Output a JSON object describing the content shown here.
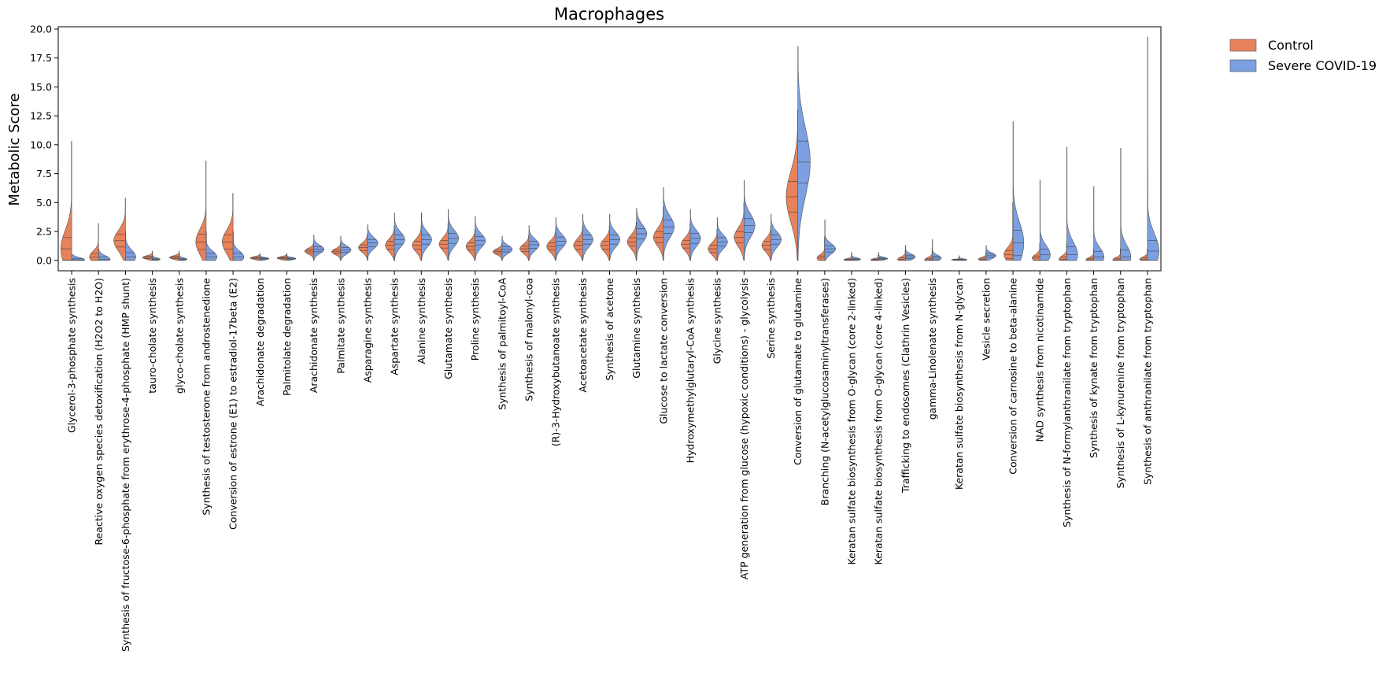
{
  "chart_data": {
    "type": "split-violin",
    "title": "Macrophages",
    "xlabel": "",
    "ylabel": "Metabolic Score",
    "ylim": [
      -0.9,
      20.2
    ],
    "yticks": [
      0.0,
      2.5,
      5.0,
      7.5,
      10.0,
      12.5,
      15.0,
      17.5,
      20.0
    ],
    "ytick_labels": [
      "0.0",
      "2.5",
      "5.0",
      "7.5",
      "10.0",
      "12.5",
      "15.0",
      "17.5",
      "20.0"
    ],
    "legend_position": "outside-top-right",
    "series": [
      {
        "name": "Control",
        "color": "#e8825a"
      },
      {
        "name": "Severe COVID-19",
        "color": "#7b9fe0"
      }
    ],
    "categories": [
      "Glycerol-3-phosphate synthesis",
      "Reactive oxygen species detoxification (H2O2 to H2O)",
      "Synthesis of fructose-6-phosphate from erythrose-4-phosphate (HMP shunt)",
      "tauro-cholate synthesis",
      "glyco-cholate synthesis",
      "Synthesis of testosterone from androstenedione",
      "Conversion of estrone (E1) to estradiol-17beta (E2)",
      "Arachidonate degradation",
      "Palmitolate degradation",
      "Arachidonate synthesis",
      "Palmitate synthesis",
      "Asparagine synthesis",
      "Aspartate synthesis",
      "Alanine synthesis",
      "Glutamate synthesis",
      "Proline synthesis",
      "Synthesis of palmitoyl-CoA",
      "Synthesis of malonyl-coa",
      "(R)-3-Hydroxybutanoate synthesis",
      "Acetoacetate synthesis",
      "Synthesis of acetone",
      "Glutamine synthesis",
      "Glucose to lactate conversion",
      "Hydroxymethylglutaryl-CoA synthesis",
      "Glycine synthesis",
      "ATP generation from glucose (hypoxic conditions) - glycolysis",
      "Serine synthesis",
      "Conversion of glutamate to glutamine",
      "Branching (N-acetylglucosaminyltransferases)",
      "Keratan sulfate biosynthesis from O-glycan (core 2-linked)",
      "Keratan sulfate biosynthesis from O-glycan (core 4-linked)",
      "Trafficking to endosomes (Clathrin Vesicles)",
      "gamma-Linolenate synthesis",
      "Keratan sulfate biosynthesis from N-glycan",
      "Vesicle secretion",
      "Conversion of carnosine to beta-alanine",
      "NAD synthesis from nicotinamide",
      "Synthesis of N-formylanthranilate from tryptophan",
      "Synthesis of kynate from tryptophan",
      "Synthesis of L-kynurenine from tryptophan",
      "Synthesis of anthranilate from tryptophan"
    ],
    "violins": [
      {
        "control": {
          "min": 0.0,
          "max": 10.3,
          "mode": 1.0,
          "width": 0.42,
          "spread": 1.6,
          "median": 1.0
        },
        "covid": {
          "min": 0.0,
          "max": 0.5,
          "mode": 0.05,
          "width": 0.5,
          "spread": 0.2,
          "median": 0.05
        }
      },
      {
        "control": {
          "min": 0.0,
          "max": 3.2,
          "mode": 0.3,
          "width": 0.35,
          "spread": 0.5,
          "median": 0.3
        },
        "covid": {
          "min": 0.0,
          "max": 1.0,
          "mode": 0.1,
          "width": 0.45,
          "spread": 0.3,
          "median": 0.1
        }
      },
      {
        "control": {
          "min": 0.0,
          "max": 5.4,
          "mode": 1.7,
          "width": 0.45,
          "spread": 0.9,
          "median": 1.7
        },
        "covid": {
          "min": 0.0,
          "max": 2.5,
          "mode": 0.3,
          "width": 0.4,
          "spread": 0.6,
          "median": 0.3
        }
      },
      {
        "control": {
          "min": 0.0,
          "max": 0.8,
          "mode": 0.25,
          "width": 0.38,
          "spread": 0.15,
          "median": 0.25
        },
        "covid": {
          "min": 0.0,
          "max": 0.6,
          "mode": 0.1,
          "width": 0.3,
          "spread": 0.12,
          "median": 0.1
        }
      },
      {
        "control": {
          "min": 0.0,
          "max": 0.8,
          "mode": 0.25,
          "width": 0.38,
          "spread": 0.15,
          "median": 0.25
        },
        "covid": {
          "min": 0.0,
          "max": 0.6,
          "mode": 0.1,
          "width": 0.3,
          "spread": 0.12,
          "median": 0.1
        }
      },
      {
        "control": {
          "min": 0.0,
          "max": 8.6,
          "mode": 1.6,
          "width": 0.4,
          "spread": 1.1,
          "median": 1.6
        },
        "covid": {
          "min": 0.0,
          "max": 2.5,
          "mode": 0.3,
          "width": 0.42,
          "spread": 0.5,
          "median": 0.3
        }
      },
      {
        "control": {
          "min": 0.0,
          "max": 5.8,
          "mode": 1.6,
          "width": 0.42,
          "spread": 1.0,
          "median": 1.6
        },
        "covid": {
          "min": 0.0,
          "max": 2.5,
          "mode": 0.3,
          "width": 0.42,
          "spread": 0.5,
          "median": 0.3
        }
      },
      {
        "control": {
          "min": 0.0,
          "max": 0.6,
          "mode": 0.2,
          "width": 0.38,
          "spread": 0.12,
          "median": 0.2
        },
        "covid": {
          "min": 0.0,
          "max": 0.5,
          "mode": 0.15,
          "width": 0.35,
          "spread": 0.1,
          "median": 0.15
        }
      },
      {
        "control": {
          "min": 0.0,
          "max": 0.6,
          "mode": 0.2,
          "width": 0.38,
          "spread": 0.12,
          "median": 0.2
        },
        "covid": {
          "min": 0.0,
          "max": 0.5,
          "mode": 0.15,
          "width": 0.35,
          "spread": 0.1,
          "median": 0.15
        }
      },
      {
        "control": {
          "min": 0.0,
          "max": 1.6,
          "mode": 0.8,
          "width": 0.35,
          "spread": 0.25,
          "median": 0.8
        },
        "covid": {
          "min": 0.0,
          "max": 2.2,
          "mode": 0.95,
          "width": 0.4,
          "spread": 0.35,
          "median": 0.95
        }
      },
      {
        "control": {
          "min": 0.0,
          "max": 1.5,
          "mode": 0.75,
          "width": 0.35,
          "spread": 0.25,
          "median": 0.75
        },
        "covid": {
          "min": 0.0,
          "max": 2.1,
          "mode": 0.9,
          "width": 0.4,
          "spread": 0.35,
          "median": 0.9
        }
      },
      {
        "control": {
          "min": 0.0,
          "max": 2.3,
          "mode": 1.1,
          "width": 0.35,
          "spread": 0.4,
          "median": 1.1
        },
        "covid": {
          "min": 0.0,
          "max": 3.1,
          "mode": 1.5,
          "width": 0.4,
          "spread": 0.5,
          "median": 1.5
        }
      },
      {
        "control": {
          "min": 0.0,
          "max": 3.0,
          "mode": 1.3,
          "width": 0.35,
          "spread": 0.55,
          "median": 1.3
        },
        "covid": {
          "min": 0.0,
          "max": 4.1,
          "mode": 1.8,
          "width": 0.4,
          "spread": 0.65,
          "median": 1.8
        }
      },
      {
        "control": {
          "min": 0.0,
          "max": 3.0,
          "mode": 1.3,
          "width": 0.35,
          "spread": 0.55,
          "median": 1.3
        },
        "covid": {
          "min": 0.0,
          "max": 4.1,
          "mode": 1.8,
          "width": 0.4,
          "spread": 0.65,
          "median": 1.8
        }
      },
      {
        "control": {
          "min": 0.0,
          "max": 3.2,
          "mode": 1.4,
          "width": 0.35,
          "spread": 0.55,
          "median": 1.4
        },
        "covid": {
          "min": 0.0,
          "max": 4.4,
          "mode": 1.9,
          "width": 0.4,
          "spread": 0.7,
          "median": 1.9
        }
      },
      {
        "control": {
          "min": 0.0,
          "max": 2.7,
          "mode": 1.2,
          "width": 0.35,
          "spread": 0.5,
          "median": 1.2
        },
        "covid": {
          "min": 0.0,
          "max": 3.8,
          "mode": 1.7,
          "width": 0.4,
          "spread": 0.6,
          "median": 1.7
        }
      },
      {
        "control": {
          "min": 0.0,
          "max": 1.5,
          "mode": 0.75,
          "width": 0.35,
          "spread": 0.25,
          "median": 0.75
        },
        "covid": {
          "min": 0.0,
          "max": 2.1,
          "mode": 0.95,
          "width": 0.4,
          "spread": 0.35,
          "median": 0.95
        }
      },
      {
        "control": {
          "min": 0.0,
          "max": 2.2,
          "mode": 1.0,
          "width": 0.35,
          "spread": 0.4,
          "median": 1.0
        },
        "covid": {
          "min": 0.0,
          "max": 3.0,
          "mode": 1.35,
          "width": 0.4,
          "spread": 0.5,
          "median": 1.35
        }
      },
      {
        "control": {
          "min": 0.0,
          "max": 2.8,
          "mode": 1.2,
          "width": 0.35,
          "spread": 0.5,
          "median": 1.2
        },
        "covid": {
          "min": 0.0,
          "max": 3.7,
          "mode": 1.65,
          "width": 0.4,
          "spread": 0.6,
          "median": 1.65
        }
      },
      {
        "control": {
          "min": 0.0,
          "max": 3.0,
          "mode": 1.3,
          "width": 0.35,
          "spread": 0.55,
          "median": 1.3
        },
        "covid": {
          "min": 0.0,
          "max": 4.0,
          "mode": 1.8,
          "width": 0.4,
          "spread": 0.65,
          "median": 1.8
        }
      },
      {
        "control": {
          "min": 0.0,
          "max": 3.0,
          "mode": 1.3,
          "width": 0.35,
          "spread": 0.55,
          "median": 1.3
        },
        "covid": {
          "min": 0.0,
          "max": 4.0,
          "mode": 1.8,
          "width": 0.4,
          "spread": 0.65,
          "median": 1.8
        }
      },
      {
        "control": {
          "min": 0.0,
          "max": 3.3,
          "mode": 1.6,
          "width": 0.35,
          "spread": 0.6,
          "median": 1.6
        },
        "covid": {
          "min": 0.0,
          "max": 4.5,
          "mode": 2.3,
          "width": 0.4,
          "spread": 0.75,
          "median": 2.3
        }
      },
      {
        "control": {
          "min": 0.0,
          "max": 4.6,
          "mode": 2.0,
          "width": 0.38,
          "spread": 0.75,
          "median": 2.0
        },
        "covid": {
          "min": 0.0,
          "max": 6.3,
          "mode": 2.9,
          "width": 0.42,
          "spread": 0.95,
          "median": 2.9
        }
      },
      {
        "control": {
          "min": 0.0,
          "max": 3.2,
          "mode": 1.4,
          "width": 0.35,
          "spread": 0.55,
          "median": 1.4
        },
        "covid": {
          "min": 0.0,
          "max": 4.4,
          "mode": 1.9,
          "width": 0.4,
          "spread": 0.7,
          "median": 1.9
        }
      },
      {
        "control": {
          "min": 0.0,
          "max": 2.7,
          "mode": 1.0,
          "width": 0.35,
          "spread": 0.5,
          "median": 1.0
        },
        "covid": {
          "min": 0.0,
          "max": 3.7,
          "mode": 1.6,
          "width": 0.4,
          "spread": 0.6,
          "median": 1.6
        }
      },
      {
        "control": {
          "min": 0.0,
          "max": 5.0,
          "mode": 2.0,
          "width": 0.38,
          "spread": 0.8,
          "median": 2.0
        },
        "covid": {
          "min": 0.0,
          "max": 6.9,
          "mode": 3.0,
          "width": 0.42,
          "spread": 1.0,
          "median": 3.0
        }
      },
      {
        "control": {
          "min": 0.0,
          "max": 3.0,
          "mode": 1.3,
          "width": 0.35,
          "spread": 0.55,
          "median": 1.3
        },
        "covid": {
          "min": 0.0,
          "max": 4.0,
          "mode": 1.8,
          "width": 0.4,
          "spread": 0.65,
          "median": 1.8
        }
      },
      {
        "control": {
          "min": 0.0,
          "max": 13.0,
          "mode": 5.5,
          "width": 0.45,
          "spread": 2.2,
          "median": 5.5
        },
        "covid": {
          "min": 0.0,
          "max": 18.5,
          "mode": 8.5,
          "width": 0.48,
          "spread": 3.0,
          "median": 8.5
        }
      },
      {
        "control": {
          "min": 0.0,
          "max": 2.0,
          "mode": 0.2,
          "width": 0.3,
          "spread": 0.3,
          "median": 0.2
        },
        "covid": {
          "min": 0.0,
          "max": 3.5,
          "mode": 1.0,
          "width": 0.42,
          "spread": 0.45,
          "median": 1.0
        }
      },
      {
        "control": {
          "min": 0.0,
          "max": 0.5,
          "mode": 0.05,
          "width": 0.3,
          "spread": 0.1,
          "median": 0.05
        },
        "covid": {
          "min": 0.0,
          "max": 0.7,
          "mode": 0.1,
          "width": 0.35,
          "spread": 0.12,
          "median": 0.1
        }
      },
      {
        "control": {
          "min": 0.0,
          "max": 0.5,
          "mode": 0.05,
          "width": 0.3,
          "spread": 0.1,
          "median": 0.05
        },
        "covid": {
          "min": 0.0,
          "max": 0.7,
          "mode": 0.15,
          "width": 0.35,
          "spread": 0.12,
          "median": 0.15
        }
      },
      {
        "control": {
          "min": 0.0,
          "max": 0.9,
          "mode": 0.1,
          "width": 0.3,
          "spread": 0.2,
          "median": 0.1
        },
        "covid": {
          "min": 0.0,
          "max": 1.3,
          "mode": 0.3,
          "width": 0.38,
          "spread": 0.25,
          "median": 0.3
        }
      },
      {
        "control": {
          "min": 0.0,
          "max": 1.0,
          "mode": 0.05,
          "width": 0.3,
          "spread": 0.2,
          "median": 0.05
        },
        "covid": {
          "min": 0.0,
          "max": 1.8,
          "mode": 0.2,
          "width": 0.35,
          "spread": 0.25,
          "median": 0.2
        }
      },
      {
        "control": {
          "min": 0.0,
          "max": 0.3,
          "mode": 0.05,
          "width": 0.3,
          "spread": 0.05,
          "median": 0.05
        },
        "covid": {
          "min": 0.0,
          "max": 0.4,
          "mode": 0.05,
          "width": 0.3,
          "spread": 0.08,
          "median": 0.05
        }
      },
      {
        "control": {
          "min": 0.0,
          "max": 0.8,
          "mode": 0.1,
          "width": 0.3,
          "spread": 0.15,
          "median": 0.1
        },
        "covid": {
          "min": 0.0,
          "max": 1.3,
          "mode": 0.4,
          "width": 0.38,
          "spread": 0.25,
          "median": 0.4
        }
      },
      {
        "control": {
          "min": 0.0,
          "max": 5.0,
          "mode": 0.5,
          "width": 0.35,
          "spread": 0.6,
          "median": 0.5
        },
        "covid": {
          "min": 0.0,
          "max": 12.0,
          "mode": 1.5,
          "width": 0.42,
          "spread": 1.8,
          "median": 1.5
        }
      },
      {
        "control": {
          "min": 0.0,
          "max": 1.5,
          "mode": 0.2,
          "width": 0.3,
          "spread": 0.3,
          "median": 0.2
        },
        "covid": {
          "min": 0.0,
          "max": 6.9,
          "mode": 0.5,
          "width": 0.4,
          "spread": 0.8,
          "median": 0.5
        }
      },
      {
        "control": {
          "min": 0.0,
          "max": 1.5,
          "mode": 0.1,
          "width": 0.3,
          "spread": 0.3,
          "median": 0.1
        },
        "covid": {
          "min": 0.0,
          "max": 9.8,
          "mode": 0.5,
          "width": 0.42,
          "spread": 1.1,
          "median": 0.5
        }
      },
      {
        "control": {
          "min": 0.0,
          "max": 1.0,
          "mode": 0.05,
          "width": 0.3,
          "spread": 0.2,
          "median": 0.05
        },
        "covid": {
          "min": 0.0,
          "max": 6.4,
          "mode": 0.3,
          "width": 0.4,
          "spread": 0.8,
          "median": 0.3
        }
      },
      {
        "control": {
          "min": 0.0,
          "max": 1.0,
          "mode": 0.05,
          "width": 0.3,
          "spread": 0.2,
          "median": 0.05
        },
        "covid": {
          "min": 0.0,
          "max": 9.7,
          "mode": 0.3,
          "width": 0.4,
          "spread": 1.0,
          "median": 0.3
        }
      },
      {
        "control": {
          "min": 0.0,
          "max": 1.0,
          "mode": 0.1,
          "width": 0.3,
          "spread": 0.2,
          "median": 0.1
        },
        "covid": {
          "min": 0.0,
          "max": 19.3,
          "mode": 0.8,
          "width": 0.45,
          "spread": 1.5,
          "median": 0.8
        }
      }
    ]
  }
}
